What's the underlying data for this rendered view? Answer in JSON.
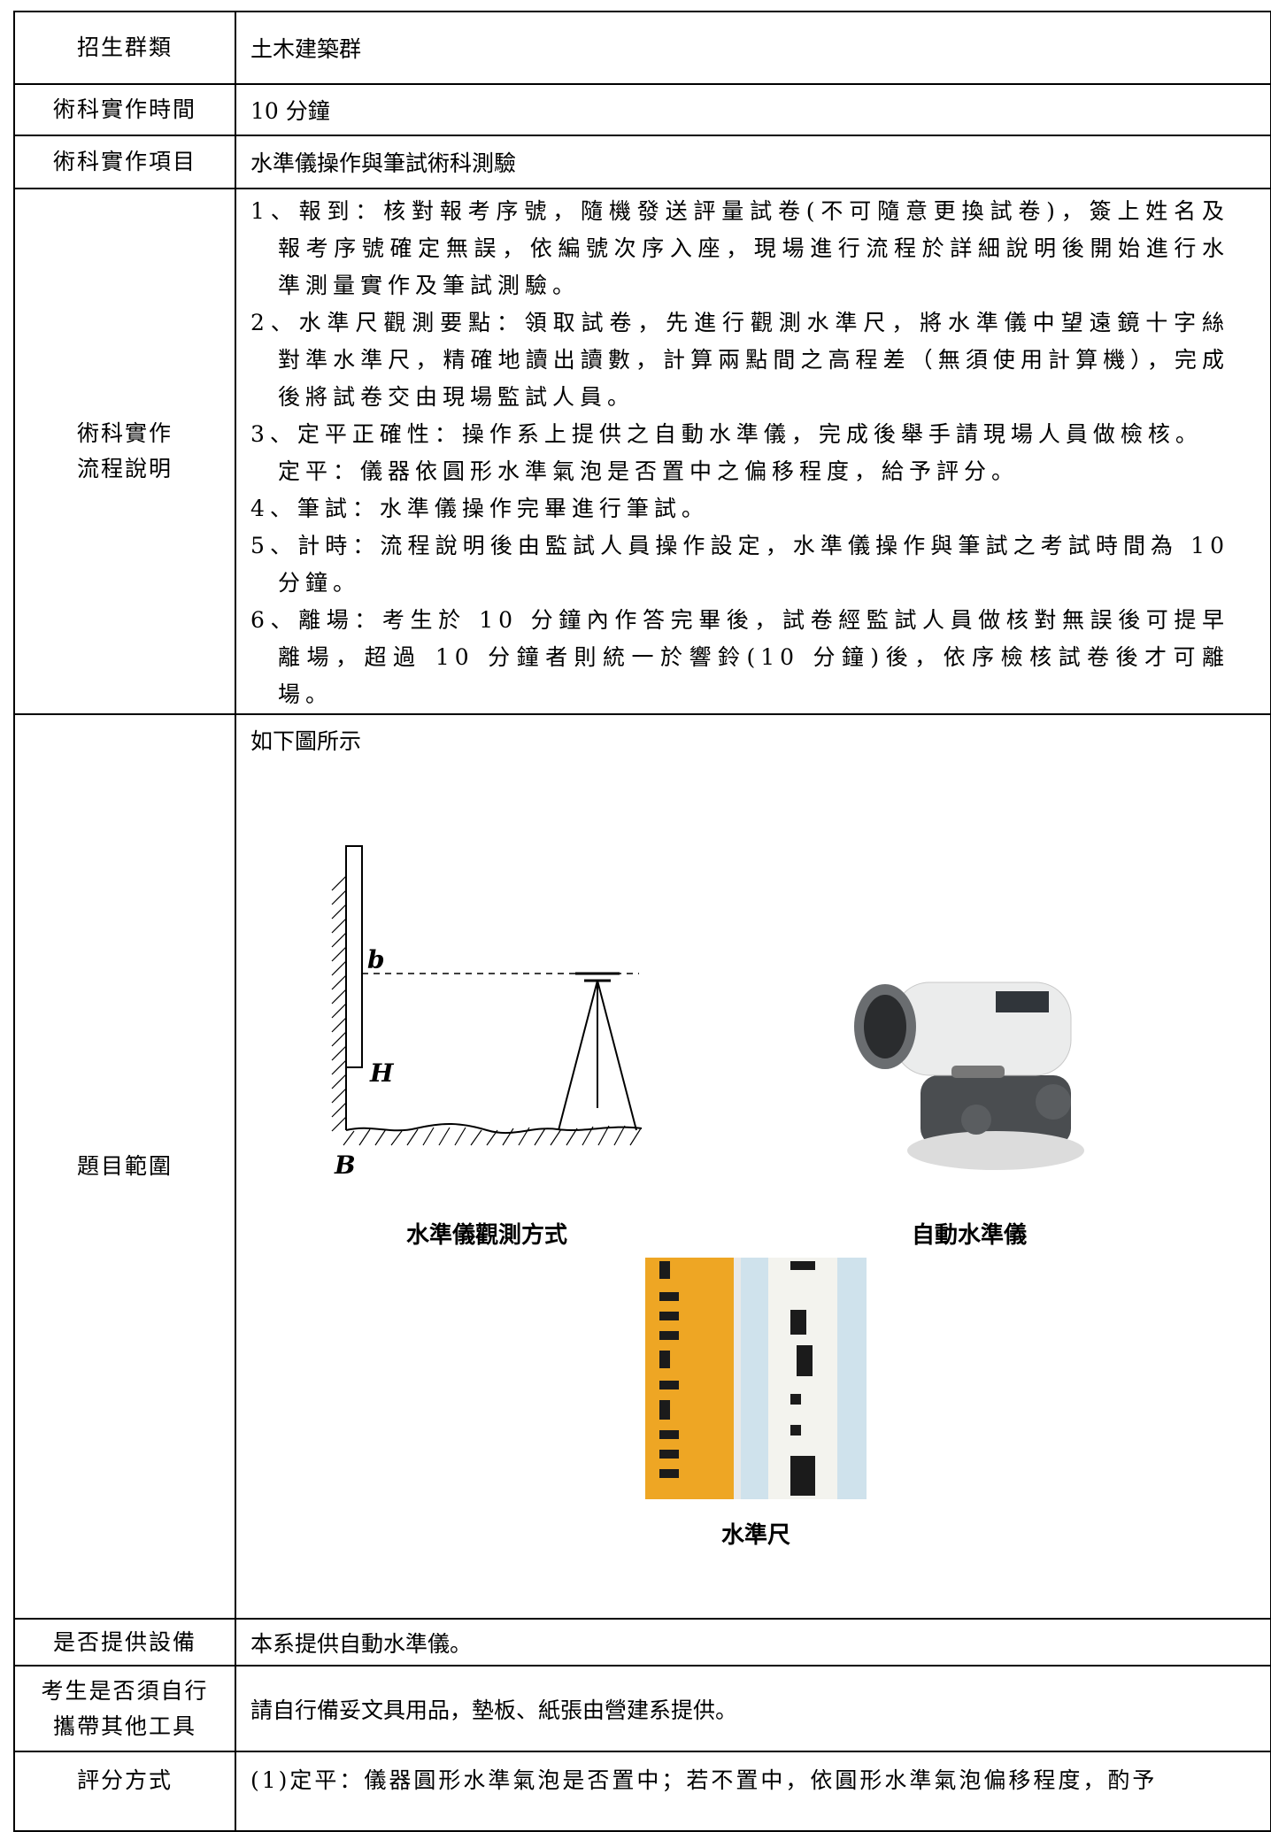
{
  "table": {
    "rows": [
      {
        "label": "招生群類",
        "content": "土木建築群"
      },
      {
        "label": "術科實作時間",
        "content": "10 分鐘"
      },
      {
        "label": "術科實作項目",
        "content": "水準儀操作與筆試術科測驗"
      },
      {
        "label": "術科實作\n流程說明",
        "items": [
          "1、報到：核對報考序號，隨機發送評量試卷(不可隨意更換試卷)，簽上姓名及報考序號確定無誤，依編號次序入座，現場進行流程於詳細說明後開始進行水準測量實作及筆試測驗。",
          "2、水準尺觀測要點：領取試卷，先進行觀測水準尺，將水準儀中望遠鏡十字絲對準水準尺，精確地讀出讀數，計算兩點間之高程差（無須使用計算機），完成後將試卷交由現場監試人員。",
          "3、定平正確性：操作系上提供之自動水準儀，完成後舉手請現場人員做檢核。\n定平：儀器依圓形水準氣泡是否置中之偏移程度，給予評分。",
          "4、筆試：水準儀操作完畢進行筆試。",
          "5、計時：流程說明後由監試人員操作設定，水準儀操作與筆試之考試時間為 10 分鐘。",
          "6、離場：考生於 10 分鐘內作答完畢後，試卷經監試人員做核對無誤後可提早離場，超過 10 分鐘者則統一於響鈴(10 分鐘)後，依序檢核試卷後才可離場。"
        ]
      },
      {
        "label": "題目範圍",
        "intro": "如下圖所示",
        "diagram_labels": [
          "b",
          "H",
          "B"
        ],
        "captions": [
          "水準儀觀測方式",
          "自動水準儀",
          "水準尺"
        ]
      },
      {
        "label": "是否提供設備",
        "content": "本系提供自動水準儀。"
      },
      {
        "label": "考生是否須自行\n攜帶其他工具",
        "content": "請自行備妥文具用品，墊板、紙張由營建系提供。"
      },
      {
        "label": "評分方式",
        "content": "(1)定平：儀器圓形水準氣泡是否置中；若不置中，依圓形水準氣泡偏移程度，酌予"
      }
    ]
  }
}
